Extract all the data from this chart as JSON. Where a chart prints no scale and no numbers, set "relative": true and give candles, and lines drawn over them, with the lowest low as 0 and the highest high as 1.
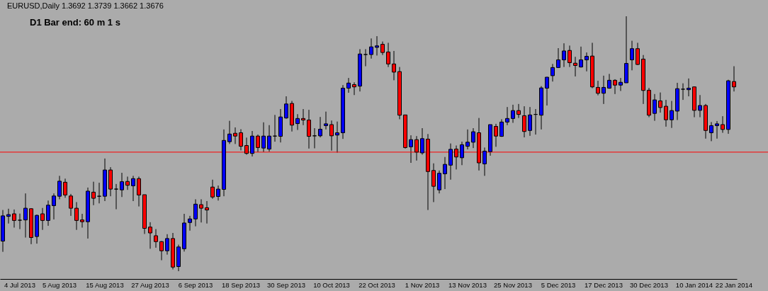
{
  "chart_data": {
    "type": "candlestick",
    "title": "EURUSD,Daily 1.3692 1.3739 1.3662 1.3676",
    "annotations": [
      "D1 Bar end: 60 m 1 s"
    ],
    "relative": true,
    "categories": [
      null,
      null,
      null,
      "4 Jul 2013",
      null,
      null,
      null,
      null,
      null,
      null,
      "5 Aug 2013",
      null,
      null,
      null,
      null,
      null,
      null,
      null,
      "15 Aug 2013",
      null,
      null,
      null,
      null,
      null,
      null,
      null,
      "27 Aug 2013",
      null,
      null,
      null,
      null,
      null,
      null,
      null,
      "6 Sep 2013",
      null,
      null,
      null,
      null,
      null,
      null,
      null,
      "18 Sep 2013",
      null,
      null,
      null,
      null,
      null,
      null,
      null,
      "30 Sep 2013",
      null,
      null,
      null,
      null,
      null,
      null,
      null,
      "10 Oct 2013",
      null,
      null,
      null,
      null,
      null,
      null,
      null,
      "22 Oct 2013",
      null,
      null,
      null,
      null,
      null,
      null,
      null,
      "1 Nov 2013",
      null,
      null,
      null,
      null,
      null,
      null,
      null,
      "13 Nov 2013",
      null,
      null,
      null,
      null,
      null,
      null,
      null,
      "25 Nov 2013",
      null,
      null,
      null,
      null,
      null,
      null,
      null,
      "5 Dec 2013",
      null,
      null,
      null,
      null,
      null,
      null,
      null,
      "17 Dec 2013",
      null,
      null,
      null,
      null,
      null,
      null,
      null,
      "30 Dec 2013",
      null,
      null,
      null,
      null,
      null,
      null,
      null,
      "10 Jan 2014",
      null,
      null,
      null,
      null,
      null,
      null,
      "22 Jan 2014"
    ],
    "ohlc": [
      [
        0.118,
        0.24,
        0.076,
        0.217
      ],
      [
        0.215,
        0.245,
        0.187,
        0.222
      ],
      [
        0.225,
        0.242,
        0.171,
        0.199
      ],
      [
        0.2,
        0.226,
        0.165,
        0.2
      ],
      [
        0.201,
        0.305,
        0.132,
        0.247
      ],
      [
        0.245,
        0.247,
        0.106,
        0.132
      ],
      [
        0.136,
        0.222,
        0.108,
        0.219
      ],
      [
        0.225,
        0.248,
        0.162,
        0.199
      ],
      [
        0.199,
        0.277,
        0.178,
        0.259
      ],
      [
        0.257,
        0.305,
        0.203,
        0.295
      ],
      [
        0.294,
        0.374,
        0.282,
        0.353
      ],
      [
        0.349,
        0.363,
        0.288,
        0.299
      ],
      [
        0.295,
        0.303,
        0.217,
        0.247
      ],
      [
        0.247,
        0.271,
        0.162,
        0.199
      ],
      [
        0.201,
        0.225,
        0.171,
        0.194
      ],
      [
        0.194,
        0.328,
        0.128,
        0.314
      ],
      [
        0.31,
        0.351,
        0.259,
        0.286
      ],
      [
        0.294,
        0.347,
        0.266,
        0.294
      ],
      [
        0.294,
        0.442,
        0.275,
        0.397
      ],
      [
        0.397,
        0.408,
        0.294,
        0.322
      ],
      [
        0.322,
        0.342,
        0.243,
        0.322
      ],
      [
        0.319,
        0.386,
        0.291,
        0.351
      ],
      [
        0.352,
        0.371,
        0.319,
        0.337
      ],
      [
        0.335,
        0.374,
        0.275,
        0.363
      ],
      [
        0.363,
        0.371,
        0.254,
        0.299
      ],
      [
        0.3,
        0.3,
        0.146,
        0.168
      ],
      [
        0.173,
        0.192,
        0.088,
        0.15
      ],
      [
        0.139,
        0.165,
        0.092,
        0.116
      ],
      [
        0.116,
        0.118,
        0.043,
        0.08
      ],
      [
        0.08,
        0.145,
        0.065,
        0.128
      ],
      [
        0.128,
        0.15,
        0.007,
        0.016
      ],
      [
        0.018,
        0.104,
        0,
        0.095
      ],
      [
        0.088,
        0.225,
        0.077,
        0.189
      ],
      [
        0.191,
        0.217,
        0.159,
        0.205
      ],
      [
        0.205,
        0.282,
        0.176,
        0.263
      ],
      [
        0.261,
        0.282,
        0.191,
        0.247
      ],
      [
        0.249,
        0.275,
        0.187,
        0.24
      ],
      [
        0.33,
        0.359,
        0.284,
        0.291
      ],
      [
        0.293,
        0.336,
        0.277,
        0.322
      ],
      [
        0.321,
        0.556,
        0.294,
        0.513
      ],
      [
        0.508,
        0.59,
        0.499,
        0.538
      ],
      [
        0.541,
        0.564,
        0.499,
        0.53
      ],
      [
        0.543,
        0.557,
        0.474,
        0.49
      ],
      [
        0.493,
        0.524,
        0.457,
        0.462
      ],
      [
        0.462,
        0.55,
        0.45,
        0.53
      ],
      [
        0.53,
        0.536,
        0.467,
        0.485
      ],
      [
        0.483,
        0.584,
        0.467,
        0.53
      ],
      [
        0.479,
        0.573,
        0.469,
        0.53
      ],
      [
        0.53,
        0.613,
        0.508,
        0.53
      ],
      [
        0.529,
        0.636,
        0.505,
        0.605
      ],
      [
        0.601,
        0.686,
        0.598,
        0.656
      ],
      [
        0.658,
        0.668,
        0.548,
        0.573
      ],
      [
        0.579,
        0.616,
        0.554,
        0.599
      ],
      [
        0.599,
        0.636,
        0.573,
        0.593
      ],
      [
        0.593,
        0.633,
        0.481,
        0.529
      ],
      [
        0.531,
        0.561,
        0.482,
        0.531
      ],
      [
        0.531,
        0.605,
        0.525,
        0.557
      ],
      [
        0.571,
        0.626,
        0.556,
        0.578
      ],
      [
        0.575,
        0.591,
        0.473,
        0.531
      ],
      [
        0.534,
        0.587,
        0.465,
        0.543
      ],
      [
        0.543,
        0.73,
        0.519,
        0.718
      ],
      [
        0.718,
        0.758,
        0.7,
        0.738
      ],
      [
        0.732,
        0.741,
        0.691,
        0.723
      ],
      [
        0.726,
        0.871,
        0.705,
        0.852
      ],
      [
        0.85,
        0.871,
        0.804,
        0.85
      ],
      [
        0.85,
        0.913,
        0.834,
        0.88
      ],
      [
        0.878,
        0.922,
        0.846,
        0.884
      ],
      [
        0.89,
        0.901,
        0.848,
        0.858
      ],
      [
        0.86,
        0.896,
        0.801,
        0.813
      ],
      [
        0.813,
        0.864,
        0.749,
        0.781
      ],
      [
        0.783,
        0.801,
        0.596,
        0.612
      ],
      [
        0.613,
        0.613,
        0.481,
        0.485
      ],
      [
        0.488,
        0.533,
        0.425,
        0.516
      ],
      [
        0.516,
        0.53,
        0.434,
        0.467
      ],
      [
        0.464,
        0.561,
        0.457,
        0.52
      ],
      [
        0.518,
        0.538,
        0.24,
        0.391
      ],
      [
        0.395,
        0.423,
        0.271,
        0.333
      ],
      [
        0.319,
        0.395,
        0.305,
        0.384
      ],
      [
        0.382,
        0.448,
        0.322,
        0.419
      ],
      [
        0.416,
        0.501,
        0.359,
        0.478
      ],
      [
        0.479,
        0.493,
        0.399,
        0.448
      ],
      [
        0.445,
        0.508,
        0.416,
        0.496
      ],
      [
        0.49,
        0.556,
        0.478,
        0.506
      ],
      [
        0.506,
        0.561,
        0.483,
        0.547
      ],
      [
        0.543,
        0.601,
        0.395,
        0.425
      ],
      [
        0.421,
        0.485,
        0.374,
        0.471
      ],
      [
        0.469,
        0.575,
        0.453,
        0.575
      ],
      [
        0.568,
        0.578,
        0.488,
        0.53
      ],
      [
        0.529,
        0.596,
        0.527,
        0.585
      ],
      [
        0.585,
        0.644,
        0.573,
        0.599
      ],
      [
        0.599,
        0.653,
        0.582,
        0.63
      ],
      [
        0.63,
        0.656,
        0.601,
        0.615
      ],
      [
        0.61,
        0.647,
        0.525,
        0.548
      ],
      [
        0.552,
        0.644,
        0.531,
        0.613
      ],
      [
        0.615,
        0.636,
        0.536,
        0.615
      ],
      [
        0.612,
        0.726,
        0.556,
        0.719
      ],
      [
        0.718,
        0.762,
        0.65,
        0.761
      ],
      [
        0.767,
        0.813,
        0.744,
        0.799
      ],
      [
        0.799,
        0.875,
        0.797,
        0.829
      ],
      [
        0.829,
        0.894,
        0.801,
        0.864
      ],
      [
        0.866,
        0.885,
        0.801,
        0.818
      ],
      [
        0.816,
        0.841,
        0.764,
        0.807
      ],
      [
        0.801,
        0.881,
        0.799,
        0.829
      ],
      [
        0.829,
        0.858,
        0.784,
        0.843
      ],
      [
        0.844,
        0.896,
        0.718,
        0.723
      ],
      [
        0.721,
        0.747,
        0.69,
        0.698
      ],
      [
        0.698,
        0.767,
        0.656,
        0.721
      ],
      [
        0.718,
        0.774,
        0.716,
        0.749
      ],
      [
        0.749,
        0.753,
        0.695,
        0.73
      ],
      [
        0.73,
        0.758,
        0.707,
        0.741
      ],
      [
        0.739,
        1,
        0.739,
        0.815
      ],
      [
        0.829,
        0.904,
        0.788,
        0.873
      ],
      [
        0.873,
        0.896,
        0.809,
        0.811
      ],
      [
        0.832,
        0.848,
        0.656,
        0.709
      ],
      [
        0.71,
        0.719,
        0.604,
        0.612
      ],
      [
        0.619,
        0.695,
        0.59,
        0.672
      ],
      [
        0.668,
        0.701,
        0.622,
        0.642
      ],
      [
        0.647,
        0.672,
        0.567,
        0.594
      ],
      [
        0.594,
        0.668,
        0.562,
        0.63
      ],
      [
        0.628,
        0.739,
        0.593,
        0.716
      ],
      [
        0.714,
        0.737,
        0.672,
        0.714
      ],
      [
        0.712,
        0.756,
        0.686,
        0.718
      ],
      [
        0.723,
        0.724,
        0.604,
        0.631
      ],
      [
        0.631,
        0.691,
        0.604,
        0.65
      ],
      [
        0.65,
        0.656,
        0.52,
        0.552
      ],
      [
        0.543,
        0.585,
        0.51,
        0.571
      ],
      [
        0.571,
        0.589,
        0.52,
        0.578
      ],
      [
        0.575,
        0.608,
        0.543,
        0.556
      ],
      [
        0.556,
        0.751,
        0.539,
        0.747
      ],
      [
        0.744,
        0.804,
        0.705,
        0.723
      ]
    ],
    "colors": [
      "#0000ff",
      "#0000ff",
      "#ff0000",
      "#000000",
      "#0000ff",
      "#ff0000",
      "#0000ff",
      "#ff0000",
      "#0000ff",
      "#0000ff",
      "#0000ff",
      "#ff0000",
      "#ff0000",
      "#ff0000",
      "#ff0000",
      "#0000ff",
      "#ff0000",
      "#000000",
      "#0000ff",
      "#ff0000",
      "#000000",
      "#0000ff",
      "#ff0000",
      "#0000ff",
      "#ff0000",
      "#ff0000",
      "#ff0000",
      "#ff0000",
      "#ff0000",
      "#0000ff",
      "#ff0000",
      "#0000ff",
      "#0000ff",
      "#0000ff",
      "#0000ff",
      "#ff0000",
      "#ff0000",
      "#ff0000",
      "#0000ff",
      "#0000ff",
      "#0000ff",
      "#ff0000",
      "#ff0000",
      "#ff0000",
      "#0000ff",
      "#ff0000",
      "#0000ff",
      "#0000ff",
      "#000000",
      "#0000ff",
      "#0000ff",
      "#ff0000",
      "#0000ff",
      "#ff0000",
      "#ff0000",
      "#000000",
      "#0000ff",
      "#0000ff",
      "#ff0000",
      "#0000ff",
      "#0000ff",
      "#0000ff",
      "#ff0000",
      "#0000ff",
      "#000000",
      "#0000ff",
      "#0000ff",
      "#ff0000",
      "#ff0000",
      "#ff0000",
      "#ff0000",
      "#ff0000",
      "#0000ff",
      "#ff0000",
      "#0000ff",
      "#ff0000",
      "#ff0000",
      "#0000ff",
      "#0000ff",
      "#0000ff",
      "#ff0000",
      "#0000ff",
      "#0000ff",
      "#0000ff",
      "#ff0000",
      "#0000ff",
      "#0000ff",
      "#ff0000",
      "#0000ff",
      "#0000ff",
      "#0000ff",
      "#ff0000",
      "#ff0000",
      "#0000ff",
      "#000000",
      "#0000ff",
      "#0000ff",
      "#0000ff",
      "#0000ff",
      "#0000ff",
      "#ff0000",
      "#ff0000",
      "#0000ff",
      "#0000ff",
      "#ff0000",
      "#ff0000",
      "#0000ff",
      "#0000ff",
      "#ff0000",
      "#0000ff",
      "#0000ff",
      "#0000ff",
      "#ff0000",
      "#ff0000",
      "#ff0000",
      "#0000ff",
      "#ff0000",
      "#ff0000",
      "#0000ff",
      "#0000ff",
      "#000000",
      "#0000ff",
      "#ff0000",
      "#0000ff",
      "#ff0000",
      "#0000ff",
      "#0000ff",
      "#ff0000",
      "#0000ff",
      "#ff0000"
    ],
    "ref_lines": [
      {
        "axis": "y",
        "value": 0.467,
        "color": "#ff0000",
        "line_style": "solid"
      }
    ]
  }
}
